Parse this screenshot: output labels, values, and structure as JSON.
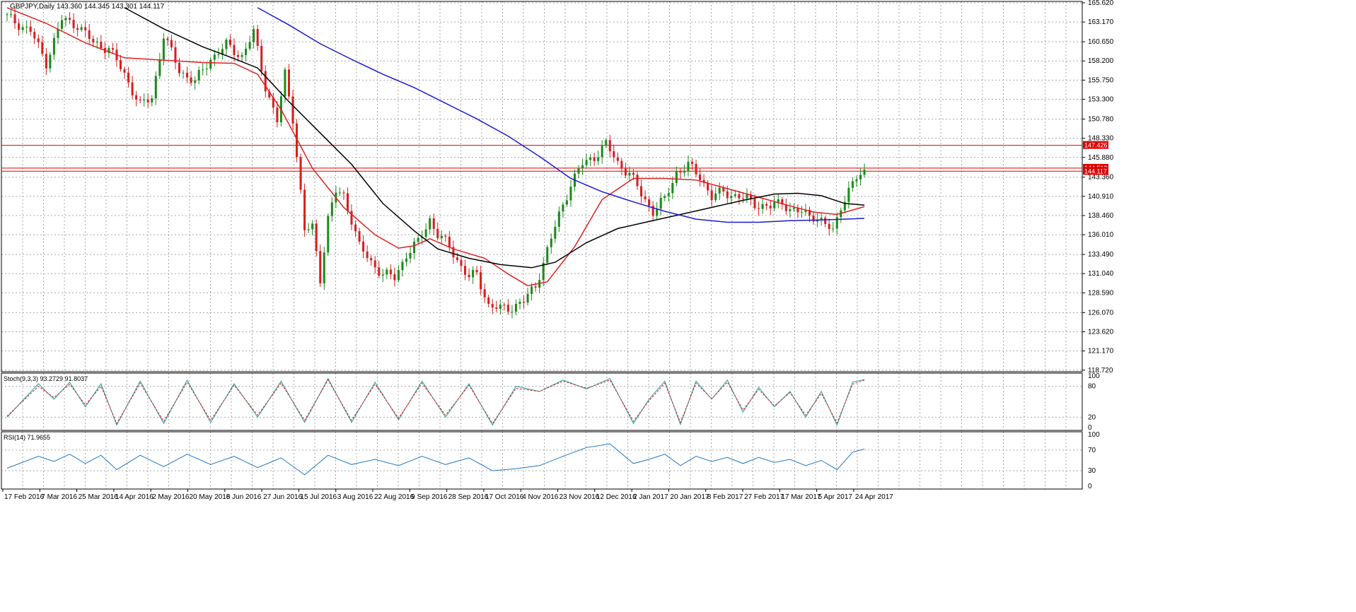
{
  "chart_data": {
    "type": "candlestick",
    "symbol_label": "GBPJPY,Daily  143.360 144.345 143.301 144.117",
    "price_axis": {
      "range": [
        118.7,
        165.62
      ],
      "ticks": [
        "165.620",
        "163.170",
        "160.650",
        "158.200",
        "155.750",
        "153.300",
        "150.780",
        "148.330",
        "145.880",
        "143.360",
        "140.910",
        "138.460",
        "136.010",
        "133.490",
        "131.040",
        "128.590",
        "126.070",
        "123.620",
        "121.170",
        "118.720"
      ]
    },
    "x_axis": {
      "ticks": [
        "17 Feb 2016",
        "7 Mar 2016",
        "25 Mar 2016",
        "14 Apr 2016",
        "2 May 2016",
        "20 May 2016",
        "8 Jun 2016",
        "27 Jun 2016",
        "15 Jul 2016",
        "3 Aug 2016",
        "22 Aug 2016",
        "9 Sep 2016",
        "28 Sep 2016",
        "17 Oct 2016",
        "4 Nov 2016",
        "23 Nov 2016",
        "12 Dec 2016",
        "2 Jan 2017",
        "20 Jan 2017",
        "8 Feb 2017",
        "27 Feb 2017",
        "17 Mar 2017",
        "5 Apr 2017",
        "24 Apr 2017"
      ]
    },
    "horizontal_levels": [
      {
        "label": "147.426",
        "value": 147.426,
        "color": "#e00000"
      },
      {
        "label": "144.512",
        "value": 144.512,
        "color": "#e00000"
      },
      {
        "label": "144.117",
        "value": 144.117,
        "color": "#e00000"
      }
    ],
    "close_path": [
      [
        0,
        163.8
      ],
      [
        6,
        162.0
      ],
      [
        10,
        158.0
      ],
      [
        14,
        163.5
      ],
      [
        18,
        162.8
      ],
      [
        22,
        160.5
      ],
      [
        26,
        159.8
      ],
      [
        30,
        156.5
      ],
      [
        34,
        152.5
      ],
      [
        37,
        153.5
      ],
      [
        40,
        161.5
      ],
      [
        44,
        157.0
      ],
      [
        48,
        155.5
      ],
      [
        52,
        158.5
      ],
      [
        56,
        160.2
      ],
      [
        60,
        158.8
      ],
      [
        63,
        161.8
      ],
      [
        66,
        155.0
      ],
      [
        69,
        150.5
      ],
      [
        71,
        156.5
      ],
      [
        73,
        151.0
      ],
      [
        76,
        136.5
      ],
      [
        78,
        137.0
      ],
      [
        80,
        130.5
      ],
      [
        82,
        138.0
      ],
      [
        84,
        141.5
      ],
      [
        86,
        141.0
      ],
      [
        88,
        138.0
      ],
      [
        90,
        134.5
      ],
      [
        93,
        132.5
      ],
      [
        96,
        131.0
      ],
      [
        99,
        130.5
      ],
      [
        102,
        133.5
      ],
      [
        105,
        135.0
      ],
      [
        108,
        138.0
      ],
      [
        110,
        136.0
      ],
      [
        113,
        134.5
      ],
      [
        116,
        132.0
      ],
      [
        118,
        130.5
      ],
      [
        120,
        131.0
      ],
      [
        123,
        127.0
      ],
      [
        126,
        126.5
      ],
      [
        129,
        126.8
      ],
      [
        132,
        127.5
      ],
      [
        135,
        129.5
      ],
      [
        138,
        134.0
      ],
      [
        141,
        138.5
      ],
      [
        144,
        142.5
      ],
      [
        147,
        145.0
      ],
      [
        150,
        146.0
      ],
      [
        153,
        147.5
      ],
      [
        156,
        145.2
      ],
      [
        159,
        143.8
      ],
      [
        162,
        141.2
      ],
      [
        165,
        139.0
      ],
      [
        168,
        140.5
      ],
      [
        171,
        144.0
      ],
      [
        174,
        144.8
      ],
      [
        177,
        143.5
      ],
      [
        180,
        140.8
      ],
      [
        183,
        141.5
      ],
      [
        186,
        141.0
      ],
      [
        189,
        140.5
      ],
      [
        192,
        139.8
      ],
      [
        195,
        139.5
      ],
      [
        198,
        140.3
      ],
      [
        200,
        139.2
      ],
      [
        203,
        138.8
      ],
      [
        206,
        138.5
      ],
      [
        209,
        137.2
      ],
      [
        211,
        136.5
      ],
      [
        213,
        139.8
      ],
      [
        215,
        141.5
      ],
      [
        217,
        143.2
      ],
      [
        219,
        144.117
      ]
    ],
    "moving_averages": [
      {
        "color": "#e02020",
        "points": [
          [
            0,
            165
          ],
          [
            10,
            163.0
          ],
          [
            20,
            160.5
          ],
          [
            30,
            158.6
          ],
          [
            40,
            158.3
          ],
          [
            50,
            158.0
          ],
          [
            58,
            157.9
          ],
          [
            64,
            156.5
          ],
          [
            70,
            152.0
          ],
          [
            78,
            144.5
          ],
          [
            86,
            139.5
          ],
          [
            94,
            136.0
          ],
          [
            100,
            134.3
          ],
          [
            104,
            134.6
          ],
          [
            108,
            135.5
          ],
          [
            114,
            134.2
          ],
          [
            122,
            133.0
          ],
          [
            128,
            131.0
          ],
          [
            133,
            129.5
          ],
          [
            138,
            130.0
          ],
          [
            145,
            134.5
          ],
          [
            152,
            140.5
          ],
          [
            160,
            143.2
          ],
          [
            168,
            143.2
          ],
          [
            176,
            143.0
          ],
          [
            184,
            141.9
          ],
          [
            192,
            140.8
          ],
          [
            200,
            139.7
          ],
          [
            206,
            138.9
          ],
          [
            212,
            138.6
          ],
          [
            219,
            139.6
          ]
        ]
      },
      {
        "color": "#000000",
        "points": [
          [
            30,
            165
          ],
          [
            40,
            162.3
          ],
          [
            50,
            160.0
          ],
          [
            58,
            158.5
          ],
          [
            64,
            157.3
          ],
          [
            72,
            153.0
          ],
          [
            80,
            149.0
          ],
          [
            88,
            145.0
          ],
          [
            96,
            140.0
          ],
          [
            104,
            136.5
          ],
          [
            110,
            134.2
          ],
          [
            118,
            133.0
          ],
          [
            126,
            132.2
          ],
          [
            134,
            131.8
          ],
          [
            140,
            132.5
          ],
          [
            148,
            135.0
          ],
          [
            156,
            136.8
          ],
          [
            164,
            137.7
          ],
          [
            172,
            138.6
          ],
          [
            180,
            139.5
          ],
          [
            188,
            140.4
          ],
          [
            196,
            141.2
          ],
          [
            202,
            141.3
          ],
          [
            208,
            141.0
          ],
          [
            214,
            140.0
          ],
          [
            219,
            139.8
          ]
        ]
      },
      {
        "color": "#1a1ad6",
        "points": [
          [
            64,
            165
          ],
          [
            72,
            162.8
          ],
          [
            80,
            160.4
          ],
          [
            88,
            158.4
          ],
          [
            96,
            156.5
          ],
          [
            104,
            154.8
          ],
          [
            112,
            152.8
          ],
          [
            120,
            150.8
          ],
          [
            128,
            148.6
          ],
          [
            136,
            146.0
          ],
          [
            144,
            143.2
          ],
          [
            152,
            141.5
          ],
          [
            160,
            140.2
          ],
          [
            168,
            139.0
          ],
          [
            176,
            138.0
          ],
          [
            184,
            137.6
          ],
          [
            192,
            137.6
          ],
          [
            200,
            137.8
          ],
          [
            208,
            137.9
          ],
          [
            214,
            138.0
          ],
          [
            219,
            138.1
          ]
        ]
      }
    ],
    "stochastic": {
      "label": "Stoch(9,3,3) 93.2729 91.8037",
      "levels": [
        0,
        20,
        80,
        100
      ],
      "tick_labels": [
        "100",
        "80",
        "20",
        "0"
      ],
      "k_color": "#20a0a0",
      "d_color": "#e02020",
      "k_path": [
        [
          0,
          20
        ],
        [
          8,
          85
        ],
        [
          12,
          55
        ],
        [
          16,
          88
        ],
        [
          20,
          40
        ],
        [
          24,
          85
        ],
        [
          28,
          5
        ],
        [
          34,
          90
        ],
        [
          40,
          8
        ],
        [
          46,
          92
        ],
        [
          52,
          10
        ],
        [
          58,
          85
        ],
        [
          64,
          20
        ],
        [
          70,
          90
        ],
        [
          76,
          10
        ],
        [
          82,
          95
        ],
        [
          88,
          10
        ],
        [
          94,
          88
        ],
        [
          100,
          15
        ],
        [
          106,
          90
        ],
        [
          112,
          20
        ],
        [
          118,
          85
        ],
        [
          124,
          5
        ],
        [
          130,
          80
        ],
        [
          136,
          70
        ],
        [
          142,
          92
        ],
        [
          148,
          75
        ],
        [
          154,
          95
        ],
        [
          160,
          8
        ],
        [
          164,
          55
        ],
        [
          168,
          90
        ],
        [
          172,
          6
        ],
        [
          176,
          90
        ],
        [
          180,
          55
        ],
        [
          184,
          92
        ],
        [
          188,
          30
        ],
        [
          192,
          78
        ],
        [
          196,
          40
        ],
        [
          200,
          70
        ],
        [
          204,
          20
        ],
        [
          208,
          70
        ],
        [
          212,
          5
        ],
        [
          216,
          88
        ],
        [
          219,
          93
        ]
      ],
      "d_path": [
        [
          0,
          22
        ],
        [
          8,
          80
        ],
        [
          12,
          58
        ],
        [
          16,
          84
        ],
        [
          20,
          44
        ],
        [
          24,
          80
        ],
        [
          28,
          8
        ],
        [
          34,
          86
        ],
        [
          40,
          12
        ],
        [
          46,
          88
        ],
        [
          52,
          14
        ],
        [
          58,
          82
        ],
        [
          64,
          24
        ],
        [
          70,
          86
        ],
        [
          76,
          14
        ],
        [
          82,
          92
        ],
        [
          88,
          14
        ],
        [
          94,
          84
        ],
        [
          100,
          18
        ],
        [
          106,
          86
        ],
        [
          112,
          24
        ],
        [
          118,
          82
        ],
        [
          124,
          8
        ],
        [
          130,
          76
        ],
        [
          136,
          70
        ],
        [
          142,
          90
        ],
        [
          148,
          76
        ],
        [
          154,
          92
        ],
        [
          160,
          12
        ],
        [
          164,
          52
        ],
        [
          168,
          86
        ],
        [
          172,
          10
        ],
        [
          176,
          86
        ],
        [
          180,
          56
        ],
        [
          184,
          88
        ],
        [
          188,
          34
        ],
        [
          192,
          74
        ],
        [
          196,
          42
        ],
        [
          200,
          68
        ],
        [
          204,
          24
        ],
        [
          208,
          66
        ],
        [
          212,
          9
        ],
        [
          216,
          84
        ],
        [
          219,
          91.8
        ]
      ]
    },
    "rsi": {
      "label": "RSI(14) 71.9655",
      "levels": [
        0,
        30,
        70,
        100
      ],
      "tick_labels": [
        "100",
        "70",
        "30",
        "0"
      ],
      "color": "#1e78c8",
      "path": [
        [
          0,
          35
        ],
        [
          8,
          58
        ],
        [
          12,
          48
        ],
        [
          16,
          62
        ],
        [
          20,
          44
        ],
        [
          24,
          60
        ],
        [
          28,
          32
        ],
        [
          34,
          60
        ],
        [
          40,
          38
        ],
        [
          46,
          62
        ],
        [
          52,
          42
        ],
        [
          58,
          58
        ],
        [
          64,
          36
        ],
        [
          70,
          55
        ],
        [
          76,
          22
        ],
        [
          82,
          60
        ],
        [
          88,
          42
        ],
        [
          94,
          52
        ],
        [
          100,
          40
        ],
        [
          106,
          58
        ],
        [
          112,
          42
        ],
        [
          118,
          55
        ],
        [
          124,
          30
        ],
        [
          130,
          34
        ],
        [
          136,
          40
        ],
        [
          142,
          58
        ],
        [
          148,
          75
        ],
        [
          154,
          82
        ],
        [
          160,
          44
        ],
        [
          164,
          52
        ],
        [
          168,
          62
        ],
        [
          172,
          40
        ],
        [
          176,
          58
        ],
        [
          180,
          48
        ],
        [
          184,
          56
        ],
        [
          188,
          44
        ],
        [
          192,
          56
        ],
        [
          196,
          46
        ],
        [
          200,
          52
        ],
        [
          204,
          40
        ],
        [
          208,
          50
        ],
        [
          212,
          32
        ],
        [
          216,
          66
        ],
        [
          219,
          72
        ]
      ]
    }
  }
}
